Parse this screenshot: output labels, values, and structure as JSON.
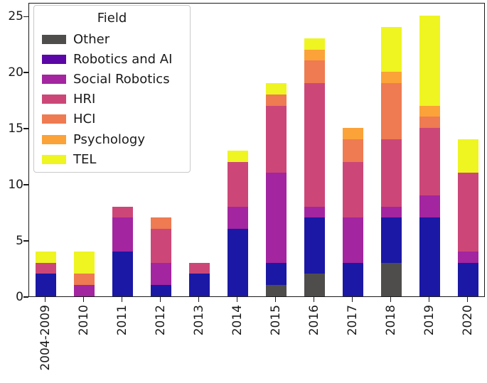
{
  "chart_data": {
    "type": "bar",
    "stacked": true,
    "legend_title": "Field",
    "legend_position": "upper left",
    "grid": false,
    "categories": [
      "2004-2009",
      "2010",
      "2011",
      "2012",
      "2013",
      "2014",
      "2015",
      "2016",
      "2017",
      "2018",
      "2019",
      "2020"
    ],
    "series": [
      {
        "name": "Other",
        "color": "#4f4c4c",
        "legend_color": "#4f4c4c",
        "values": [
          0,
          0,
          0,
          0,
          0,
          0,
          1,
          2,
          0,
          3,
          0,
          0
        ]
      },
      {
        "name": "Robotics and AI",
        "color": "#1b18a5",
        "legend_color": "#5b06a6",
        "values": [
          2,
          0,
          4,
          1,
          2,
          6,
          2,
          5,
          3,
          4,
          7,
          3
        ]
      },
      {
        "name": "Social Robotics",
        "color": "#a325a0",
        "legend_color": "#a325a0",
        "values": [
          0,
          1,
          3,
          2,
          0,
          2,
          8,
          1,
          4,
          1,
          2,
          1
        ]
      },
      {
        "name": "HRI",
        "color": "#cc4778",
        "legend_color": "#cc4778",
        "values": [
          1,
          0,
          1,
          3,
          1,
          4,
          6,
          11,
          5,
          6,
          6,
          7
        ]
      },
      {
        "name": "HCI",
        "color": "#ee7b51",
        "legend_color": "#ee7b51",
        "values": [
          0,
          1,
          0,
          1,
          0,
          0,
          1,
          2,
          2,
          5,
          1,
          0
        ]
      },
      {
        "name": "Psychology",
        "color": "#fba238",
        "legend_color": "#fba238",
        "values": [
          0,
          0,
          0,
          0,
          0,
          0,
          0,
          1,
          1,
          1,
          1,
          0
        ]
      },
      {
        "name": "TEL",
        "color": "#eef521",
        "legend_color": "#eef521",
        "values": [
          1,
          2,
          0,
          0,
          0,
          1,
          1,
          1,
          0,
          4,
          8,
          3
        ]
      }
    ],
    "yticks": [
      0,
      5,
      10,
      15,
      20,
      25
    ],
    "ylim": [
      0,
      26.2
    ],
    "axis_color": "#1a1a1a"
  }
}
